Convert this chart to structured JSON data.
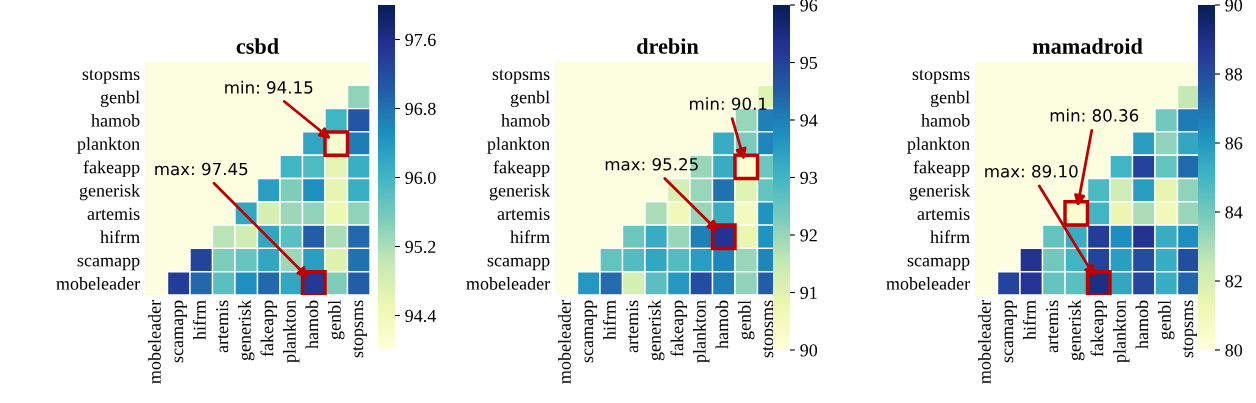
{
  "chart_data": [
    {
      "type": "heatmap",
      "title": "csbd",
      "categories": [
        "mobeleader",
        "scamapp",
        "hifrm",
        "artemis",
        "generisk",
        "fakeapp",
        "plankton",
        "hamob",
        "genbl",
        "stopsms"
      ],
      "y_categories": [
        "stopsms",
        "genbl",
        "hamob",
        "plankton",
        "fakeapp",
        "generisk",
        "artemis",
        "hifrm",
        "scamapp",
        "mobeleader"
      ],
      "cells": [
        [
          null,
          null,
          null,
          null,
          null,
          null,
          null,
          null,
          null,
          null
        ],
        [
          null,
          null,
          null,
          null,
          null,
          null,
          null,
          null,
          null,
          95.4
        ],
        [
          null,
          null,
          null,
          null,
          null,
          null,
          null,
          null,
          96.0,
          97.1
        ],
        [
          null,
          null,
          null,
          null,
          null,
          null,
          null,
          96.2,
          94.15,
          96.7
        ],
        [
          null,
          null,
          null,
          null,
          null,
          null,
          96.0,
          95.9,
          94.6,
          96.1
        ],
        [
          null,
          null,
          null,
          null,
          null,
          96.3,
          95.5,
          96.5,
          94.6,
          96.1
        ],
        [
          null,
          null,
          null,
          null,
          96.2,
          94.8,
          95.3,
          95.4,
          94.5,
          95.4
        ],
        [
          null,
          null,
          null,
          95.1,
          94.9,
          96.2,
          95.8,
          97.0,
          95.2,
          96.9
        ],
        [
          null,
          null,
          97.3,
          95.5,
          95.7,
          96.2,
          95.3,
          96.3,
          94.7,
          96.8
        ],
        [
          null,
          97.4,
          96.9,
          95.8,
          96.5,
          96.9,
          96.2,
          97.45,
          95.5,
          97.0
        ]
      ],
      "clim": [
        94.0,
        98.0
      ],
      "cticks": [
        94.4,
        95.2,
        {
          "value": 96.0,
          "label": "96.0"
        },
        96.8,
        97.6
      ],
      "annotations": [
        "min: 94.15",
        "max: 97.45"
      ]
    },
    {
      "type": "heatmap",
      "title": "drebin",
      "categories": [
        "mobeleader",
        "scamapp",
        "hifrm",
        "artemis",
        "generisk",
        "fakeapp",
        "plankton",
        "hamob",
        "genbl",
        "stopsms"
      ],
      "y_categories": [
        "stopsms",
        "genbl",
        "hamob",
        "plankton",
        "fakeapp",
        "generisk",
        "artemis",
        "hifrm",
        "scamapp",
        "mobeleader"
      ],
      "cells": [
        [
          null,
          null,
          null,
          null,
          null,
          null,
          null,
          null,
          null,
          null
        ],
        [
          null,
          null,
          null,
          null,
          null,
          null,
          null,
          null,
          null,
          91.0
        ],
        [
          null,
          null,
          null,
          null,
          null,
          null,
          null,
          null,
          92.0,
          94.0
        ],
        [
          null,
          null,
          null,
          null,
          null,
          null,
          null,
          93.2,
          92.3,
          93.9
        ],
        [
          null,
          null,
          null,
          null,
          null,
          null,
          92.0,
          93.2,
          90.1,
          92.5
        ],
        [
          null,
          null,
          null,
          null,
          null,
          91.2,
          92.0,
          94.2,
          91.0,
          92.6
        ],
        [
          null,
          null,
          null,
          null,
          91.8,
          90.6,
          92.0,
          93.2,
          90.5,
          93.7
        ],
        [
          null,
          null,
          null,
          92.5,
          93.2,
          92.0,
          94.0,
          95.25,
          90.8,
          93.7
        ],
        [
          null,
          null,
          92.6,
          92.8,
          93.3,
          92.8,
          93.5,
          93.9,
          92.0,
          93.9
        ],
        [
          null,
          93.6,
          94.3,
          91.2,
          92.7,
          93.6,
          94.8,
          94.0,
          92.1,
          94.5
        ]
      ],
      "clim": [
        90,
        96
      ],
      "cticks": [
        90,
        91,
        92,
        93,
        94,
        95,
        96
      ],
      "annotations": [
        "min: 90.1",
        "max: 95.25"
      ]
    },
    {
      "type": "heatmap",
      "title": "mamadroid",
      "categories": [
        "mobeleader",
        "scamapp",
        "hifrm",
        "artemis",
        "generisk",
        "fakeapp",
        "plankton",
        "hamob",
        "genbl",
        "stopsms"
      ],
      "y_categories": [
        "stopsms",
        "genbl",
        "hamob",
        "plankton",
        "fakeapp",
        "generisk",
        "artemis",
        "hifrm",
        "scamapp",
        "mobeleader"
      ],
      "cells": [
        [
          null,
          null,
          null,
          null,
          null,
          null,
          null,
          null,
          null,
          null
        ],
        [
          null,
          null,
          null,
          null,
          null,
          null,
          null,
          null,
          null,
          82.5
        ],
        [
          null,
          null,
          null,
          null,
          null,
          null,
          null,
          null,
          84.0,
          86.8
        ],
        [
          null,
          null,
          null,
          null,
          null,
          null,
          null,
          85.8,
          83.5,
          85.5
        ],
        [
          null,
          null,
          null,
          null,
          null,
          null,
          85.0,
          88.3,
          84.3,
          87.2
        ],
        [
          null,
          null,
          null,
          null,
          null,
          84.8,
          82.3,
          85.8,
          81.5,
          83.5
        ],
        [
          null,
          null,
          null,
          null,
          80.36,
          85.0,
          81.3,
          83.0,
          81.0,
          83.3
        ],
        [
          null,
          null,
          null,
          84.3,
          85.3,
          88.5,
          86.3,
          88.8,
          85.3,
          86.3
        ],
        [
          null,
          null,
          88.8,
          84.0,
          85.0,
          88.3,
          85.8,
          88.0,
          85.3,
          88.0
        ],
        [
          null,
          88.3,
          88.7,
          84.3,
          84.5,
          89.1,
          85.5,
          88.2,
          85.3,
          87.3
        ]
      ],
      "clim": [
        80,
        90
      ],
      "cticks": [
        80,
        82,
        84,
        86,
        88,
        90
      ],
      "annotations": [
        "min: 80.36",
        "max: 89.10"
      ]
    }
  ]
}
